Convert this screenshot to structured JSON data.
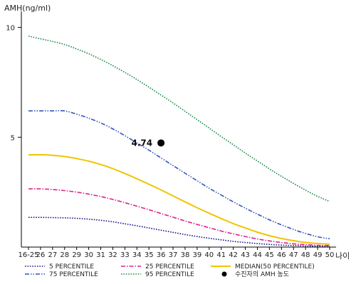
{
  "chart_data": {
    "type": "line",
    "xlabel": "나이",
    "ylabel": "AMH(ng/ml)",
    "ylim": [
      0,
      10.6
    ],
    "y_ticks": [
      5,
      10
    ],
    "grid": false,
    "legend_position": "bottom",
    "categories": [
      "16-25",
      "26",
      "27",
      "28",
      "29",
      "30",
      "31",
      "32",
      "33",
      "34",
      "35",
      "36",
      "37",
      "38",
      "39",
      "40",
      "41",
      "42",
      "43",
      "44",
      "45",
      "46",
      "47",
      "48",
      "49",
      "50"
    ],
    "series": [
      {
        "name": "5 PERCENTILE",
        "color": "#1a1a8c",
        "dash": "dotted",
        "values": [
          1.35,
          1.35,
          1.34,
          1.33,
          1.31,
          1.27,
          1.22,
          1.15,
          1.06,
          0.97,
          0.87,
          0.77,
          0.67,
          0.57,
          0.48,
          0.4,
          0.33,
          0.26,
          0.21,
          0.16,
          0.12,
          0.09,
          0.07,
          0.05,
          0.04,
          0.04
        ]
      },
      {
        "name": "25 PERCENTILE",
        "color": "#e0208a",
        "dash": "dashdot",
        "values": [
          2.65,
          2.65,
          2.62,
          2.57,
          2.5,
          2.41,
          2.3,
          2.17,
          2.02,
          1.86,
          1.7,
          1.53,
          1.36,
          1.19,
          1.03,
          0.88,
          0.73,
          0.6,
          0.48,
          0.37,
          0.28,
          0.21,
          0.15,
          0.11,
          0.08,
          0.07
        ]
      },
      {
        "name": "MEDIAN(50 PERCENTILE)",
        "color": "#f0c400",
        "dash": "solid",
        "values": [
          4.2,
          4.2,
          4.18,
          4.12,
          4.03,
          3.91,
          3.76,
          3.57,
          3.35,
          3.11,
          2.86,
          2.6,
          2.33,
          2.06,
          1.79,
          1.54,
          1.3,
          1.07,
          0.87,
          0.68,
          0.52,
          0.39,
          0.29,
          0.21,
          0.16,
          0.14
        ]
      },
      {
        "name": "75 PERCENTILE",
        "color": "#3355bb",
        "dash": "dashdotdot",
        "values": [
          6.2,
          6.2,
          6.2,
          6.2,
          6.05,
          5.87,
          5.65,
          5.38,
          5.07,
          4.74,
          4.41,
          4.06,
          3.71,
          3.36,
          3.02,
          2.68,
          2.37,
          2.06,
          1.77,
          1.5,
          1.24,
          1.01,
          0.8,
          0.62,
          0.47,
          0.38
        ]
      },
      {
        "name": "95 PERCENTILE",
        "color": "#1f8a4c",
        "dash": "dotted",
        "values": [
          9.6,
          9.48,
          9.36,
          9.22,
          9.02,
          8.8,
          8.54,
          8.26,
          7.95,
          7.63,
          7.28,
          6.92,
          6.56,
          6.18,
          5.8,
          5.42,
          5.03,
          4.66,
          4.28,
          3.92,
          3.56,
          3.22,
          2.9,
          2.59,
          2.31,
          2.08
        ]
      }
    ],
    "marker": {
      "name": "수진자의 AMH 농도",
      "x": "36",
      "value": 4.74,
      "label": "4.74",
      "color": "#000000"
    },
    "legend": [
      {
        "name": "5 PERCENTILE",
        "color": "#1a1a8c",
        "dash": "dotted"
      },
      {
        "name": "25 PERCENTILE",
        "color": "#e0208a",
        "dash": "dashdot"
      },
      {
        "name": "MEDIAN(50 PERCENTILE)",
        "color": "#f0c400",
        "dash": "solid"
      },
      {
        "name": "75 PERCENTILE",
        "color": "#3355bb",
        "dash": "dashdotdot"
      },
      {
        "name": "95 PERCENTILE",
        "color": "#1f8a4c",
        "dash": "dotted"
      },
      {
        "name": "수진자의 AMH 농도",
        "color": "#000000",
        "dash": "marker"
      }
    ]
  }
}
